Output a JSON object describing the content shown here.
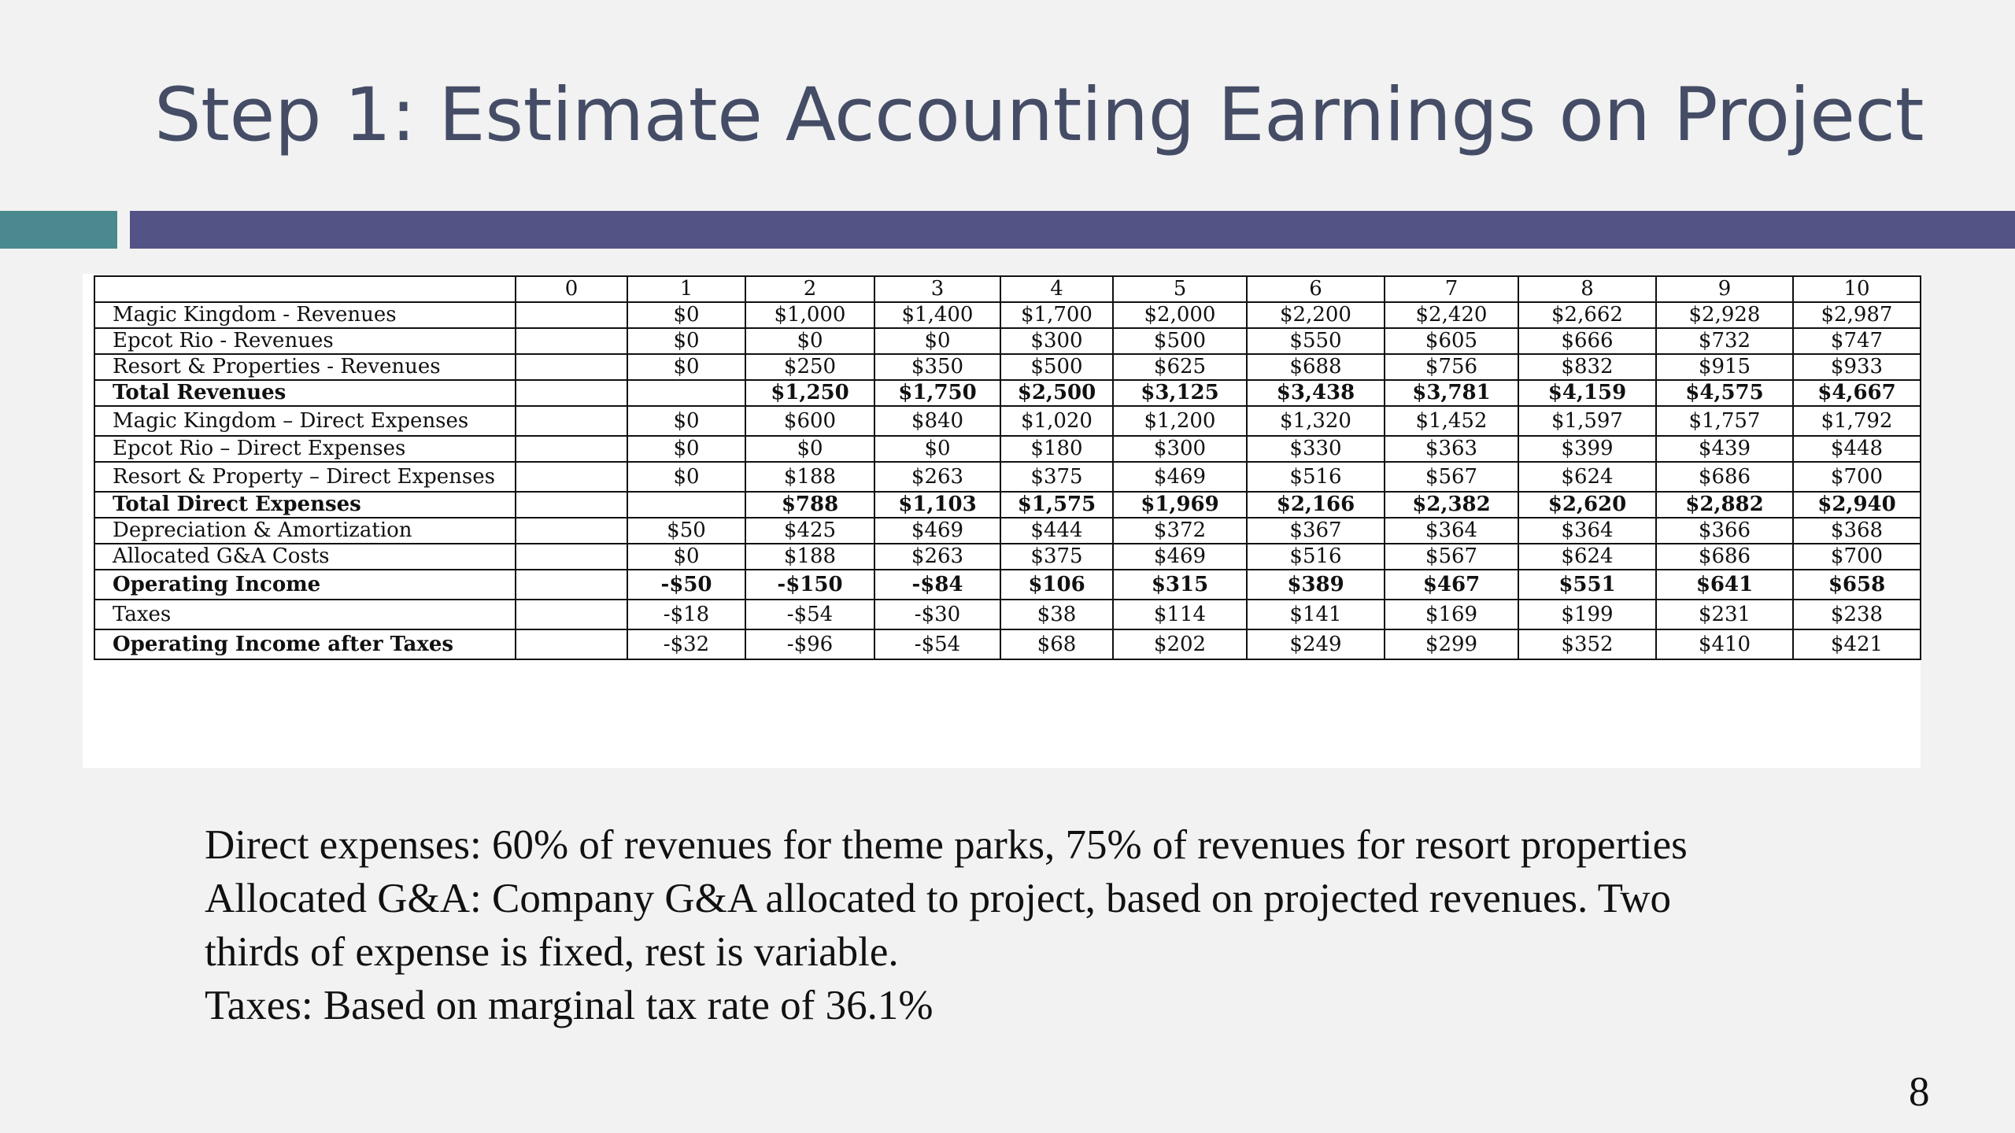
{
  "slide": {
    "title": "Step 1: Estimate Accounting Earnings on Project",
    "page_number": "8"
  },
  "table": {
    "columns": [
      "",
      "0",
      "1",
      "2",
      "3",
      "4",
      "5",
      "6",
      "7",
      "8",
      "9",
      "10"
    ],
    "rows": [
      {
        "label": "Magic Kingdom - Revenues",
        "bold": false,
        "cells": [
          "",
          "$0",
          "$1,000",
          "$1,400",
          "$1,700",
          "$2,000",
          "$2,200",
          "$2,420",
          "$2,662",
          "$2,928",
          "$2,987"
        ]
      },
      {
        "label": "Epcot Rio - Revenues",
        "bold": false,
        "cells": [
          "",
          "$0",
          "$0",
          "$0",
          "$300",
          "$500",
          "$550",
          "$605",
          "$666",
          "$732",
          "$747"
        ]
      },
      {
        "label": "Resort & Properties - Revenues",
        "bold": false,
        "cells": [
          "",
          "$0",
          "$250",
          "$350",
          "$500",
          "$625",
          "$688",
          "$756",
          "$832",
          "$915",
          "$933"
        ]
      },
      {
        "label": "Total Revenues",
        "bold": true,
        "cells": [
          "",
          "",
          "$1,250",
          "$1,750",
          "$2,500",
          "$3,125",
          "$3,438",
          "$3,781",
          "$4,159",
          "$4,575",
          "$4,667"
        ]
      },
      {
        "label": "Magic Kingdom – Direct Expenses",
        "bold": false,
        "tall": true,
        "cells": [
          "",
          "$0",
          "$600",
          "$840",
          "$1,020",
          "$1,200",
          "$1,320",
          "$1,452",
          "$1,597",
          "$1,757",
          "$1,792"
        ]
      },
      {
        "label": "Epcot Rio – Direct Expenses",
        "bold": false,
        "cells": [
          "",
          "$0",
          "$0",
          "$0",
          "$180",
          "$300",
          "$330",
          "$363",
          "$399",
          "$439",
          "$448"
        ]
      },
      {
        "label": "Resort & Property – Direct Expenses",
        "bold": false,
        "tall": true,
        "cells": [
          "",
          "$0",
          "$188",
          "$263",
          "$375",
          "$469",
          "$516",
          "$567",
          "$624",
          "$686",
          "$700"
        ]
      },
      {
        "label": "Total Direct Expenses",
        "bold": true,
        "cells": [
          "",
          "",
          "$788",
          "$1,103",
          "$1,575",
          "$1,969",
          "$2,166",
          "$2,382",
          "$2,620",
          "$2,882",
          "$2,940"
        ]
      },
      {
        "label": "Depreciation & Amortization",
        "bold": false,
        "cells": [
          "",
          "$50",
          "$425",
          "$469",
          "$444",
          "$372",
          "$367",
          "$364",
          "$364",
          "$366",
          "$368"
        ]
      },
      {
        "label": "Allocated G&A Costs",
        "bold": false,
        "cells": [
          "",
          "$0",
          "$188",
          "$263",
          "$375",
          "$469",
          "$516",
          "$567",
          "$624",
          "$686",
          "$700"
        ]
      },
      {
        "label": "Operating Income",
        "bold": true,
        "med": true,
        "cells": [
          "",
          "-$50",
          "-$150",
          "-$84",
          "$106",
          "$315",
          "$389",
          "$467",
          "$551",
          "$641",
          "$658"
        ]
      },
      {
        "label": "Taxes",
        "bold": false,
        "med": true,
        "cells": [
          "",
          "-$18",
          "-$54",
          "-$30",
          "$38",
          "$114",
          "$141",
          "$169",
          "$199",
          "$231",
          "$238"
        ]
      },
      {
        "label": "Operating Income after Taxes",
        "bold": true,
        "boldLabelOnly": true,
        "med": true,
        "cells": [
          "",
          "-$32",
          "-$96",
          "-$54",
          "$68",
          "$202",
          "$249",
          "$299",
          "$352",
          "$410",
          "$421"
        ]
      }
    ]
  },
  "notes": [
    "Direct expenses: 60% of revenues for theme parks, 75% of revenues for resort properties",
    "Allocated G&A: Company G&A allocated to project, based on projected revenues. Two",
    "thirds of expense is fixed, rest is variable.",
    "Taxes: Based on marginal tax rate of 36.1%"
  ],
  "colors": {
    "title": "#454d66",
    "accent_teal": "#4a8a8e",
    "accent_purple": "#535386",
    "background": "#f2f2f2"
  }
}
